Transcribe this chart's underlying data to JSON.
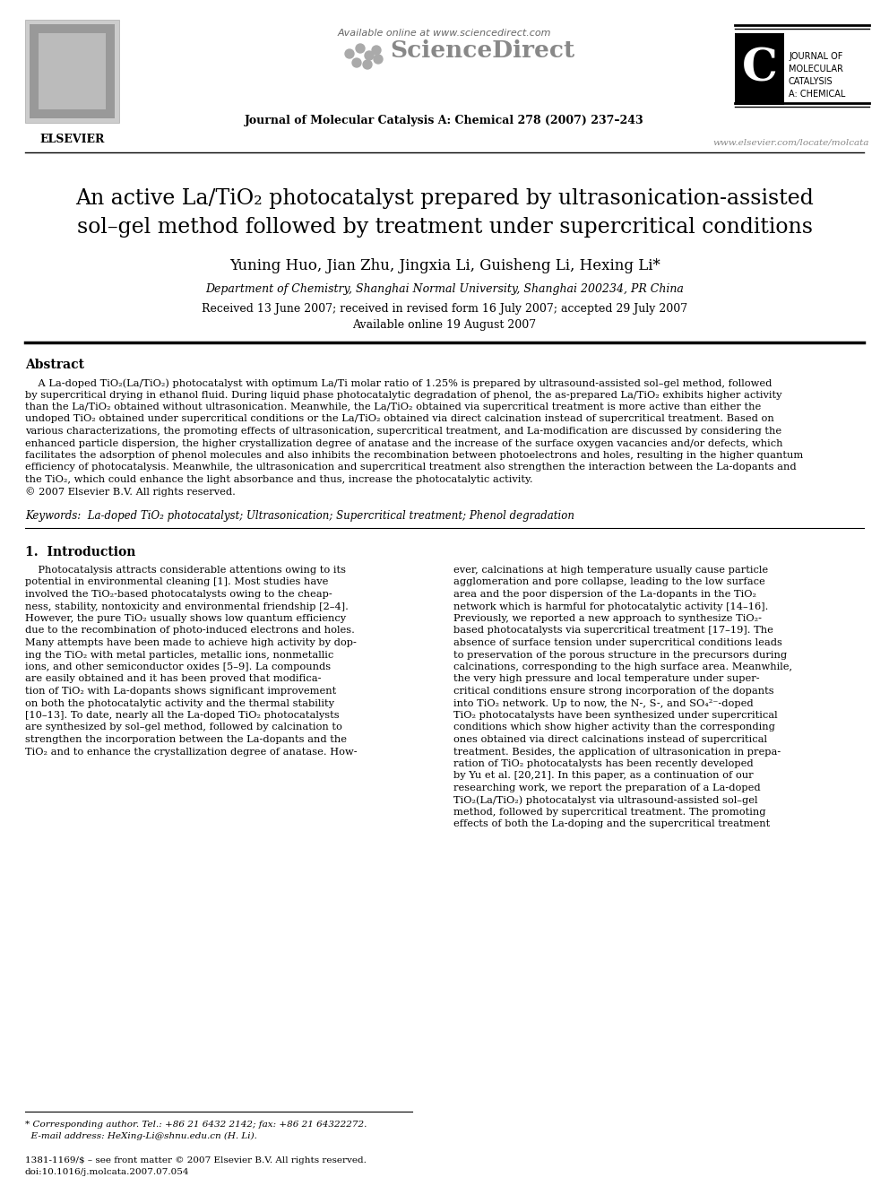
{
  "page_bg": "#ffffff",
  "title_line1": "An active La/TiO₂ photocatalyst prepared by ultrasonication-assisted",
  "title_line2": "sol–gel method followed by treatment under supercritical conditions",
  "authors": "Yuning Huo, Jian Zhu, Jingxia Li, Guisheng Li, Hexing Li*",
  "affiliation": "Department of Chemistry, Shanghai Normal University, Shanghai 200234, PR China",
  "received": "Received 13 June 2007; received in revised form 16 July 2007; accepted 29 July 2007",
  "available": "Available online 19 August 2007",
  "journal_info": "Journal of Molecular Catalysis A: Chemical 278 (2007) 237–243",
  "available_online": "Available online at www.sciencedirect.com",
  "website": "www.elsevier.com/locate/molcata",
  "copyright_footer": "1381-1169/$ – see front matter © 2007 Elsevier B.V. All rights reserved.",
  "doi_footer": "doi:10.1016/j.molcata.2007.07.054",
  "corresponding_line1": "* Corresponding author. Tel.: +86 21 6432 2142; fax: +86 21 64322272.",
  "corresponding_line2": "  E-mail address: HeXing-Li@shnu.edu.cn (H. Li).",
  "abstract_title": "Abstract",
  "keywords": "Keywords:  La-doped TiO₂ photocatalyst; Ultrasonication; Supercritical treatment; Phenol degradation",
  "section1_title": "1.  Introduction",
  "abstract_lines": [
    "    A La-doped TiO₂(La/TiO₂) photocatalyst with optimum La/Ti molar ratio of 1.25% is prepared by ultrasound-assisted sol–gel method, followed",
    "by supercritical drying in ethanol fluid. During liquid phase photocatalytic degradation of phenol, the as-prepared La/TiO₂ exhibits higher activity",
    "than the La/TiO₂ obtained without ultrasonication. Meanwhile, the La/TiO₂ obtained via supercritical treatment is more active than either the",
    "undoped TiO₂ obtained under supercritical conditions or the La/TiO₂ obtained via direct calcination instead of supercritical treatment. Based on",
    "various characterizations, the promoting effects of ultrasonication, supercritical treatment, and La-modification are discussed by considering the",
    "enhanced particle dispersion, the higher crystallization degree of anatase and the increase of the surface oxygen vacancies and/or defects, which",
    "facilitates the adsorption of phenol molecules and also inhibits the recombination between photoelectrons and holes, resulting in the higher quantum",
    "efficiency of photocatalysis. Meanwhile, the ultrasonication and supercritical treatment also strengthen the interaction between the La-dopants and",
    "the TiO₂, which could enhance the light absorbance and thus, increase the photocatalytic activity.",
    "© 2007 Elsevier B.V. All rights reserved."
  ],
  "left_col_lines": [
    "    Photocatalysis attracts considerable attentions owing to its",
    "potential in environmental cleaning [1]. Most studies have",
    "involved the TiO₂-based photocatalysts owing to the cheap-",
    "ness, stability, nontoxicity and environmental friendship [2–4].",
    "However, the pure TiO₂ usually shows low quantum efficiency",
    "due to the recombination of photo-induced electrons and holes.",
    "Many attempts have been made to achieve high activity by dop-",
    "ing the TiO₂ with metal particles, metallic ions, nonmetallic",
    "ions, and other semiconductor oxides [5–9]. La compounds",
    "are easily obtained and it has been proved that modifica-",
    "tion of TiO₂ with La-dopants shows significant improvement",
    "on both the photocatalytic activity and the thermal stability",
    "[10–13]. To date, nearly all the La-doped TiO₂ photocatalysts",
    "are synthesized by sol–gel method, followed by calcination to",
    "strengthen the incorporation between the La-dopants and the",
    "TiO₂ and to enhance the crystallization degree of anatase. How-"
  ],
  "right_col_lines": [
    "ever, calcinations at high temperature usually cause particle",
    "agglomeration and pore collapse, leading to the low surface",
    "area and the poor dispersion of the La-dopants in the TiO₂",
    "network which is harmful for photocatalytic activity [14–16].",
    "Previously, we reported a new approach to synthesize TiO₂-",
    "based photocatalysts via supercritical treatment [17–19]. The",
    "absence of surface tension under supercritical conditions leads",
    "to preservation of the porous structure in the precursors during",
    "calcinations, corresponding to the high surface area. Meanwhile,",
    "the very high pressure and local temperature under super-",
    "critical conditions ensure strong incorporation of the dopants",
    "into TiO₂ network. Up to now, the N-, S-, and SO₄²⁻-doped",
    "TiO₂ photocatalysts have been synthesized under supercritical",
    "conditions which show higher activity than the corresponding",
    "ones obtained via direct calcinations instead of supercritical",
    "treatment. Besides, the application of ultrasonication in prepa-",
    "ration of TiO₂ photocatalysts has been recently developed",
    "by Yu et al. [20,21]. In this paper, as a continuation of our",
    "researching work, we report the preparation of a La-doped",
    "TiO₂(La/TiO₂) photocatalyst via ultrasound-assisted sol–gel",
    "method, followed by supercritical treatment. The promoting",
    "effects of both the La-doping and the supercritical treatment"
  ]
}
